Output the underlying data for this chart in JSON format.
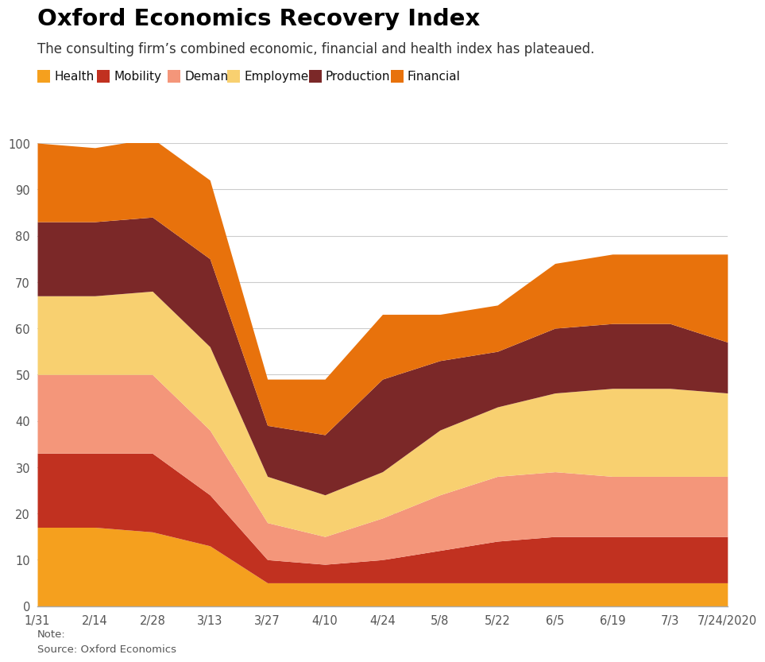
{
  "title": "Oxford Economics Recovery Index",
  "subtitle": "The consulting firm’s combined economic, financial and health index has plateaued.",
  "note": "Note:",
  "source": "Source: Oxford Economics",
  "x_labels": [
    "1/31",
    "2/14",
    "2/28",
    "3/13",
    "3/27",
    "4/10",
    "4/24",
    "5/8",
    "5/22",
    "6/5",
    "6/19",
    "7/3",
    "7/24/2020"
  ],
  "series_names": [
    "Health",
    "Mobility",
    "Demand",
    "Employment",
    "Production",
    "Financial"
  ],
  "colors": [
    "#F5A01E",
    "#C13120",
    "#F4967A",
    "#F8D070",
    "#7B2828",
    "#E8720C"
  ],
  "ylim": [
    0,
    100
  ],
  "yticks": [
    0,
    10,
    20,
    30,
    40,
    50,
    60,
    70,
    80,
    90,
    100
  ],
  "Health": [
    17,
    17,
    16,
    13,
    5,
    5,
    5,
    5,
    5,
    5,
    5,
    5,
    5
  ],
  "Mobility": [
    16,
    16,
    17,
    11,
    5,
    4,
    5,
    7,
    9,
    10,
    10,
    10,
    10
  ],
  "Demand": [
    17,
    17,
    17,
    14,
    8,
    6,
    9,
    12,
    14,
    14,
    13,
    13,
    13
  ],
  "Employment": [
    17,
    17,
    18,
    18,
    10,
    9,
    10,
    14,
    15,
    17,
    19,
    19,
    18
  ],
  "Production": [
    16,
    16,
    16,
    19,
    11,
    13,
    20,
    15,
    12,
    14,
    14,
    14,
    11
  ],
  "Financial": [
    17,
    16,
    17,
    17,
    10,
    12,
    14,
    10,
    10,
    14,
    15,
    15,
    19
  ]
}
